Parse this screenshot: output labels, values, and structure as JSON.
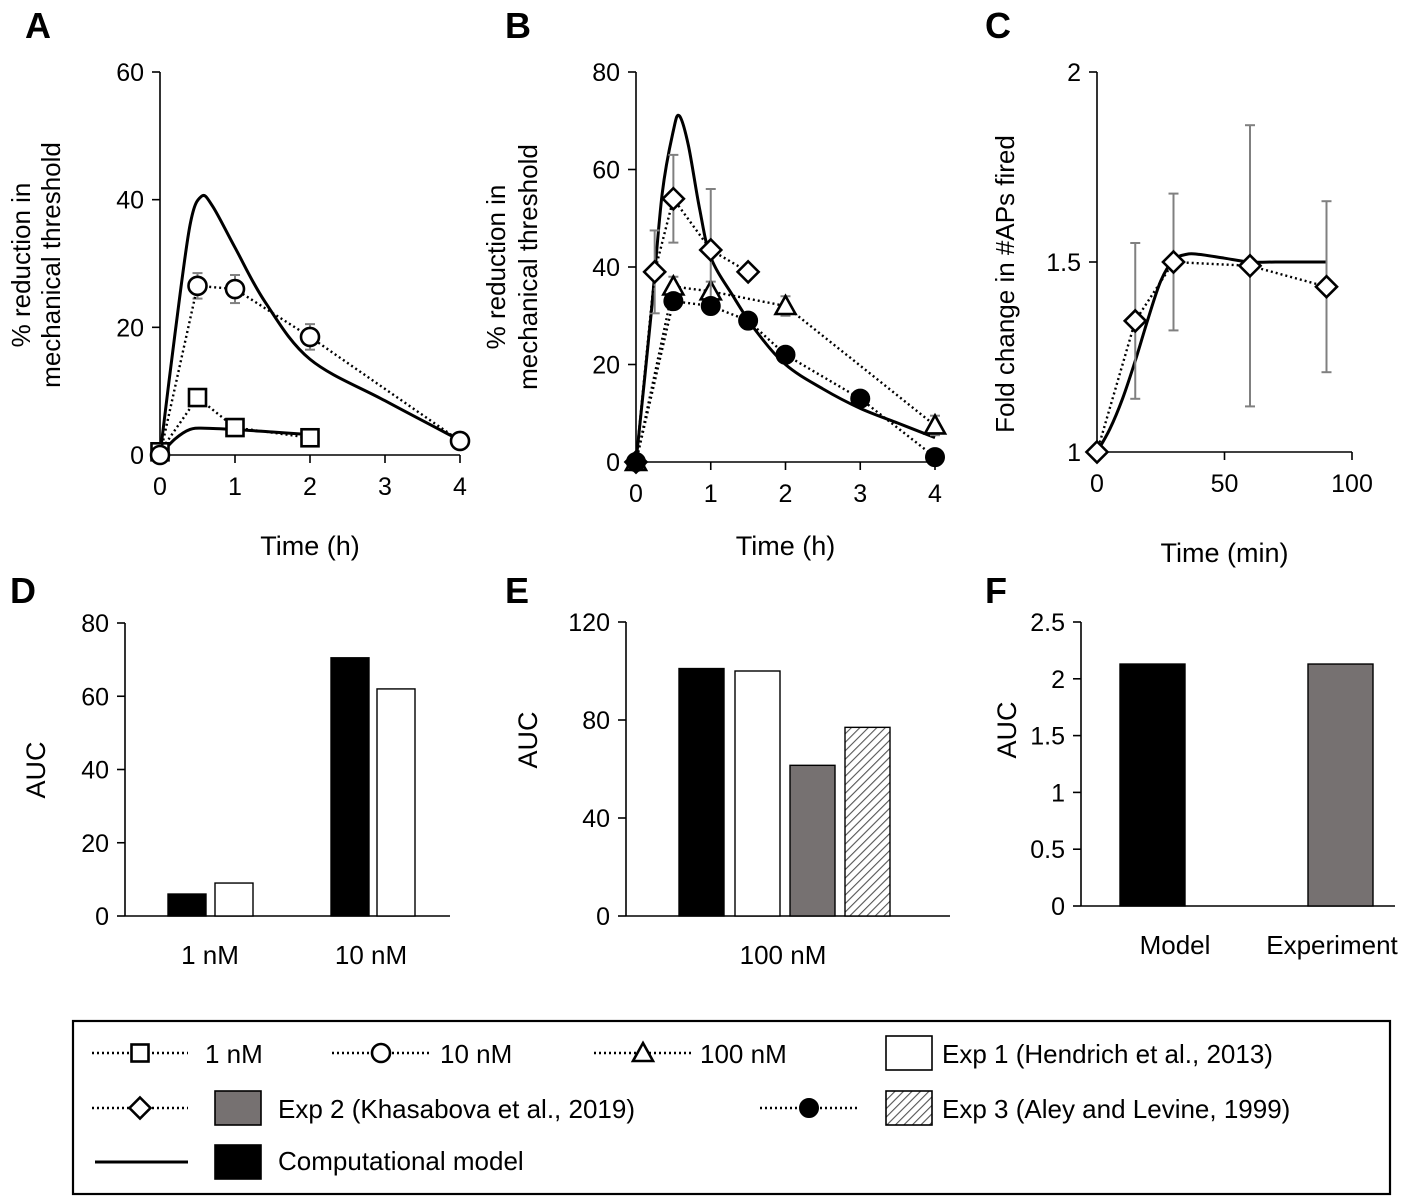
{
  "chart_data": [
    {
      "panel": "A",
      "type": "line",
      "xlabel": "Time (h)",
      "ylabel": [
        "% reduction in",
        "mechanical threshold"
      ],
      "xlim": [
        0,
        4
      ],
      "ylim": [
        0,
        60
      ],
      "xticks": [
        "0",
        "1",
        "2",
        "3",
        "4"
      ],
      "yticks": [
        "0",
        "20",
        "40",
        "60"
      ],
      "series": [
        {
          "name": "1 nM",
          "marker": "square",
          "line": "dotted",
          "x": [
            0,
            0.5,
            1,
            2
          ],
          "y": [
            0.5,
            9,
            4.3,
            2.7
          ],
          "err": [
            0.5,
            1,
            1,
            0.5
          ]
        },
        {
          "name": "10 nM",
          "marker": "circle",
          "line": "dotted",
          "x": [
            0,
            0.5,
            1,
            2,
            4
          ],
          "y": [
            0,
            26.5,
            26,
            18.5,
            2.2
          ],
          "err": [
            0,
            2,
            2.2,
            2,
            1
          ]
        },
        {
          "name": "Computational model (1 nM)",
          "line": "solid",
          "x": [
            0,
            0.2,
            0.4,
            0.6,
            1,
            1.5,
            2
          ],
          "y": [
            0,
            2.5,
            4,
            4.2,
            4,
            3.6,
            3.2
          ]
        },
        {
          "name": "Computational model (10 nM)",
          "line": "solid",
          "x": [
            0,
            0.2,
            0.4,
            0.55,
            0.7,
            1,
            1.4,
            2,
            3,
            4
          ],
          "y": [
            0,
            19,
            36,
            40.5,
            39,
            32.5,
            24,
            15,
            8.5,
            2.3
          ]
        }
      ]
    },
    {
      "panel": "B",
      "type": "line",
      "xlabel": "Time (h)",
      "ylabel": [
        "% reduction in",
        "mechanical threshold"
      ],
      "xlim": [
        0,
        4
      ],
      "ylim": [
        0,
        80
      ],
      "xticks": [
        "0",
        "1",
        "2",
        "3",
        "4"
      ],
      "yticks": [
        "0",
        "20",
        "40",
        "60",
        "80"
      ],
      "series": [
        {
          "name": "100 nM",
          "marker": "triangle",
          "line": "dotted",
          "x": [
            0,
            0.5,
            1,
            2,
            4
          ],
          "y": [
            0,
            36,
            35,
            32,
            7.5
          ],
          "err": [
            0,
            2,
            2,
            2,
            2
          ]
        },
        {
          "name": "Exp 2 (Khasabova et al., 2019)",
          "marker": "diamond",
          "line": "dotted",
          "x": [
            0,
            0.25,
            0.5,
            1,
            1.5
          ],
          "y": [
            0,
            39,
            54,
            43.5,
            39
          ],
          "err": [
            0,
            8.5,
            9,
            12.5,
            0
          ]
        },
        {
          "name": "Exp 3 (Aley and Levine, 1999)",
          "marker": "filled-circle",
          "line": "dotted",
          "x": [
            0,
            0.5,
            1,
            1.5,
            2,
            3,
            4
          ],
          "y": [
            0,
            33,
            32,
            29,
            22,
            13,
            1
          ],
          "err": [
            0,
            0,
            0,
            0,
            0,
            0,
            0
          ]
        },
        {
          "name": "Computational model",
          "line": "solid",
          "x": [
            0,
            0.2,
            0.35,
            0.5,
            0.58,
            0.7,
            0.85,
            1,
            1.3,
            1.6,
            2,
            2.5,
            3,
            3.5,
            4
          ],
          "y": [
            0,
            30,
            55,
            68,
            71,
            65,
            52,
            42,
            34,
            27,
            20,
            15,
            11,
            8,
            5
          ]
        }
      ]
    },
    {
      "panel": "C",
      "type": "line",
      "xlabel": "Time (min)",
      "ylabel": [
        "Fold change in #APs fired"
      ],
      "xlim": [
        0,
        100
      ],
      "ylim": [
        1,
        2
      ],
      "xticks": [
        "0",
        "50",
        "100"
      ],
      "yticks": [
        "1",
        "1.5",
        "2"
      ],
      "series": [
        {
          "name": "Exp 2 (Khasabova et al., 2019)",
          "marker": "diamond",
          "line": "dotted",
          "x": [
            0,
            15,
            30,
            60,
            90
          ],
          "y": [
            1,
            1.345,
            1.5,
            1.49,
            1.435
          ],
          "err": [
            0,
            0.205,
            0.18,
            0.37,
            0.225
          ]
        },
        {
          "name": "Computational model",
          "line": "solid",
          "x": [
            0,
            5,
            10,
            15,
            20,
            25,
            30,
            35,
            40,
            50,
            60,
            70,
            80,
            90
          ],
          "y": [
            1,
            1.06,
            1.14,
            1.24,
            1.35,
            1.45,
            1.505,
            1.52,
            1.52,
            1.51,
            1.5,
            1.5,
            1.5,
            1.5
          ]
        }
      ]
    },
    {
      "panel": "D",
      "type": "bar",
      "ylabel": "AUC",
      "ylim": [
        0,
        80
      ],
      "yticks": [
        "0",
        "20",
        "40",
        "60",
        "80"
      ],
      "categories": [
        "1 nM",
        "10 nM"
      ],
      "series": [
        {
          "name": "Computational model",
          "values": [
            6,
            70.5
          ]
        },
        {
          "name": "Exp 1 (Hendrich et al., 2013)",
          "values": [
            9,
            62
          ]
        }
      ]
    },
    {
      "panel": "E",
      "type": "bar",
      "ylabel": "AUC",
      "ylim": [
        0,
        120
      ],
      "yticks": [
        "0",
        "40",
        "80",
        "120"
      ],
      "categories": [
        "100 nM"
      ],
      "series": [
        {
          "name": "Computational model",
          "values": [
            101
          ]
        },
        {
          "name": "Exp 1 (Hendrich et al., 2013)",
          "values": [
            100
          ]
        },
        {
          "name": "Exp 2 (Khasabova et al., 2019)",
          "values": [
            61.5
          ]
        },
        {
          "name": "Exp 3 (Aley and Levine, 1999)",
          "values": [
            77
          ]
        }
      ]
    },
    {
      "panel": "F",
      "type": "bar",
      "ylabel": "AUC",
      "ylim": [
        0,
        2.5
      ],
      "yticks": [
        "0",
        "0.5",
        "1",
        "1.5",
        "2",
        "2.5"
      ],
      "categories": [
        "Model",
        "Experiment"
      ],
      "series": [
        {
          "name": "Computational model",
          "values": [
            2.13,
            null
          ]
        },
        {
          "name": "Exp 2 (Khasabova et al., 2019)",
          "values": [
            null,
            2.13
          ]
        }
      ]
    }
  ],
  "legend": {
    "entries": [
      {
        "label": "1 nM",
        "symbol": "square-dotted"
      },
      {
        "label": "10 nM",
        "symbol": "circle-dotted"
      },
      {
        "label": "100 nM",
        "symbol": "triangle-dotted"
      },
      {
        "label": "Exp 1 (Hendrich et al., 2013)",
        "symbol": "white-box"
      },
      {
        "label": "Exp 2 (Khasabova et al., 2019)",
        "symbol": "diamond-dotted + gray-box"
      },
      {
        "label": "Exp 3 (Aley and Levine, 1999)",
        "symbol": "filled-circle-dotted + hatched-box"
      },
      {
        "label": "Computational model",
        "symbol": "solid-line + black-box"
      }
    ]
  },
  "colors": {
    "model": "#000000",
    "exp1": "#ffffff",
    "exp2": "#767171",
    "exp3": "hatched",
    "errorbar": "#808080"
  }
}
